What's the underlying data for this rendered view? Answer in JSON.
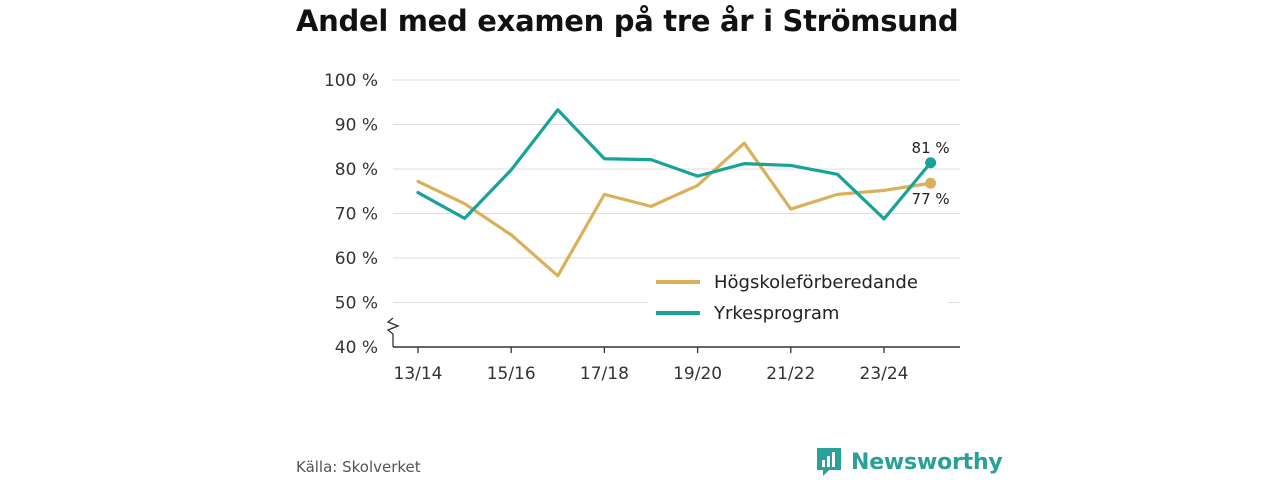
{
  "title": "Andel med examen på tre år i Strömsund",
  "source": "Källa: Skolverket",
  "brand": "Newsworthy",
  "chart_data": {
    "type": "line",
    "title": "Andel med examen på tre år i Strömsund",
    "x": [
      "13/14",
      "14/15",
      "15/16",
      "16/17",
      "17/18",
      "18/19",
      "19/20",
      "20/21",
      "21/22",
      "22/23",
      "23/24",
      "24/25"
    ],
    "x_tick_labels": [
      "13/14",
      "15/16",
      "17/18",
      "19/20",
      "21/22",
      "23/24"
    ],
    "y_tick_labels": [
      "40 %",
      "50 %",
      "60 %",
      "70 %",
      "80 %",
      "90 %",
      "100 %"
    ],
    "ylim": [
      40,
      100
    ],
    "y_ticks": [
      40,
      50,
      60,
      70,
      80,
      90,
      100
    ],
    "grid": true,
    "legend_position": "bottom-right",
    "series": [
      {
        "name": "Högskoleförberedande",
        "color": "#dbb05a",
        "values": [
          77.2,
          72.2,
          65.2,
          56.0,
          74.3,
          71.6,
          76.3,
          85.8,
          71.0,
          74.3,
          75.2,
          76.8
        ],
        "end_label": "77 %"
      },
      {
        "name": "Yrkesprogram",
        "color": "#17a398",
        "values": [
          74.7,
          68.9,
          79.8,
          93.3,
          82.3,
          82.1,
          78.4,
          81.2,
          80.8,
          78.8,
          68.8,
          81.4
        ],
        "end_label": "81 %"
      }
    ]
  }
}
